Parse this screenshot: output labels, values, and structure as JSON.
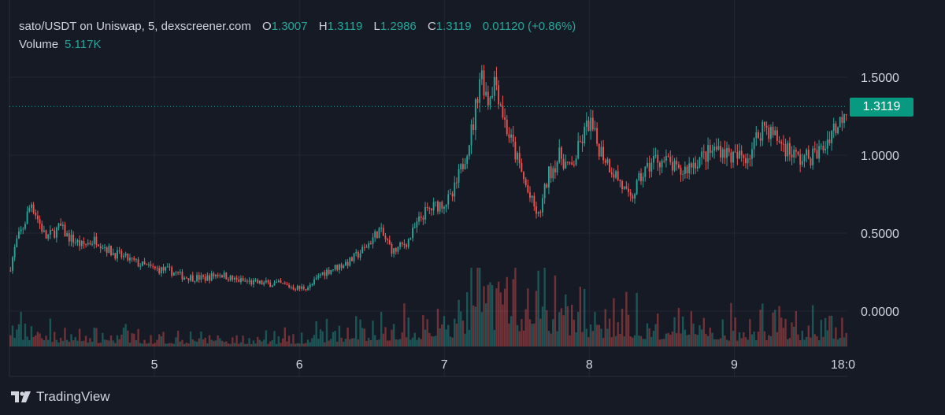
{
  "legend": {
    "symbol": "sato/USDT on Uniswap, 5, dexscreener.com",
    "open_label": "O",
    "open": "1.3007",
    "high_label": "H",
    "high": "1.3119",
    "low_label": "L",
    "low": "1.2986",
    "close_label": "C",
    "close": "1.3119",
    "change": "0.01120 (+0.86%)",
    "volume_label": "Volume",
    "volume": "5.117K"
  },
  "branding": {
    "name": "TradingView"
  },
  "colors": {
    "background": "#161a25",
    "grid": "#232734",
    "up": "#26a69a",
    "down": "#ef5350",
    "price_line": "#26a69a",
    "axis_text": "#d1d4dc"
  },
  "chart_data": {
    "type": "candlestick",
    "price_scale": "right",
    "ylim": [
      -0.13,
      1.75
    ],
    "y_ticks": [
      1.5,
      1.0,
      0.5,
      0.0
    ],
    "y_tick_labels": [
      "1.5000",
      "1.0000",
      "0.5000",
      "0.0000"
    ],
    "x_ticks": [
      5,
      6,
      7,
      8,
      9,
      9.75
    ],
    "x_tick_labels": [
      "5",
      "6",
      "7",
      "8",
      "9",
      "18:0"
    ],
    "xlim": [
      4.0,
      9.78
    ],
    "current_price": 1.3119,
    "current_price_label": "1.3119",
    "grid": true,
    "price_trend": [
      [
        4.0,
        0.26
      ],
      [
        4.05,
        0.45
      ],
      [
        4.1,
        0.55
      ],
      [
        4.15,
        0.7
      ],
      [
        4.2,
        0.58
      ],
      [
        4.25,
        0.47
      ],
      [
        4.3,
        0.5
      ],
      [
        4.35,
        0.54
      ],
      [
        4.4,
        0.48
      ],
      [
        4.5,
        0.42
      ],
      [
        4.6,
        0.46
      ],
      [
        4.7,
        0.38
      ],
      [
        4.8,
        0.34
      ],
      [
        4.9,
        0.3
      ],
      [
        5.0,
        0.27
      ],
      [
        5.1,
        0.26
      ],
      [
        5.2,
        0.22
      ],
      [
        5.35,
        0.21
      ],
      [
        5.45,
        0.24
      ],
      [
        5.55,
        0.2
      ],
      [
        5.7,
        0.18
      ],
      [
        5.85,
        0.175
      ],
      [
        6.0,
        0.145
      ],
      [
        6.08,
        0.16
      ],
      [
        6.15,
        0.24
      ],
      [
        6.25,
        0.28
      ],
      [
        6.35,
        0.32
      ],
      [
        6.45,
        0.4
      ],
      [
        6.55,
        0.52
      ],
      [
        6.65,
        0.38
      ],
      [
        6.75,
        0.45
      ],
      [
        6.85,
        0.62
      ],
      [
        6.95,
        0.68
      ],
      [
        7.05,
        0.72
      ],
      [
        7.12,
        0.92
      ],
      [
        7.2,
        1.2
      ],
      [
        7.25,
        1.55
      ],
      [
        7.3,
        1.35
      ],
      [
        7.35,
        1.5
      ],
      [
        7.42,
        1.2
      ],
      [
        7.5,
        0.98
      ],
      [
        7.58,
        0.75
      ],
      [
        7.65,
        0.6
      ],
      [
        7.72,
        0.88
      ],
      [
        7.8,
        1.0
      ],
      [
        7.87,
        0.9
      ],
      [
        7.95,
        1.1
      ],
      [
        8.0,
        1.22
      ],
      [
        8.05,
        1.08
      ],
      [
        8.15,
        0.92
      ],
      [
        8.2,
        0.85
      ],
      [
        8.28,
        0.7
      ],
      [
        8.35,
        0.85
      ],
      [
        8.45,
        0.98
      ],
      [
        8.55,
        0.95
      ],
      [
        8.62,
        0.88
      ],
      [
        8.7,
        0.94
      ],
      [
        8.8,
        1.0
      ],
      [
        8.9,
        1.05
      ],
      [
        9.0,
        0.98
      ],
      [
        9.1,
        1.0
      ],
      [
        9.2,
        1.2
      ],
      [
        9.3,
        1.1
      ],
      [
        9.38,
        1.03
      ],
      [
        9.45,
        0.97
      ],
      [
        9.55,
        1.0
      ],
      [
        9.62,
        1.05
      ],
      [
        9.68,
        1.18
      ],
      [
        9.72,
        1.18
      ],
      [
        9.76,
        1.31
      ]
    ],
    "volume_trend": [
      [
        4.0,
        0.25
      ],
      [
        4.2,
        0.2
      ],
      [
        4.6,
        0.15
      ],
      [
        5.0,
        0.12
      ],
      [
        5.6,
        0.1
      ],
      [
        6.0,
        0.12
      ],
      [
        6.4,
        0.25
      ],
      [
        6.9,
        0.3
      ],
      [
        7.15,
        0.45
      ],
      [
        7.25,
        0.9
      ],
      [
        7.35,
        0.75
      ],
      [
        7.5,
        0.7
      ],
      [
        7.65,
        0.65
      ],
      [
        7.8,
        0.55
      ],
      [
        8.0,
        0.4
      ],
      [
        8.3,
        0.35
      ],
      [
        8.6,
        0.3
      ],
      [
        9.0,
        0.25
      ],
      [
        9.3,
        0.3
      ],
      [
        9.7,
        0.25
      ],
      [
        9.78,
        0.35
      ]
    ]
  }
}
